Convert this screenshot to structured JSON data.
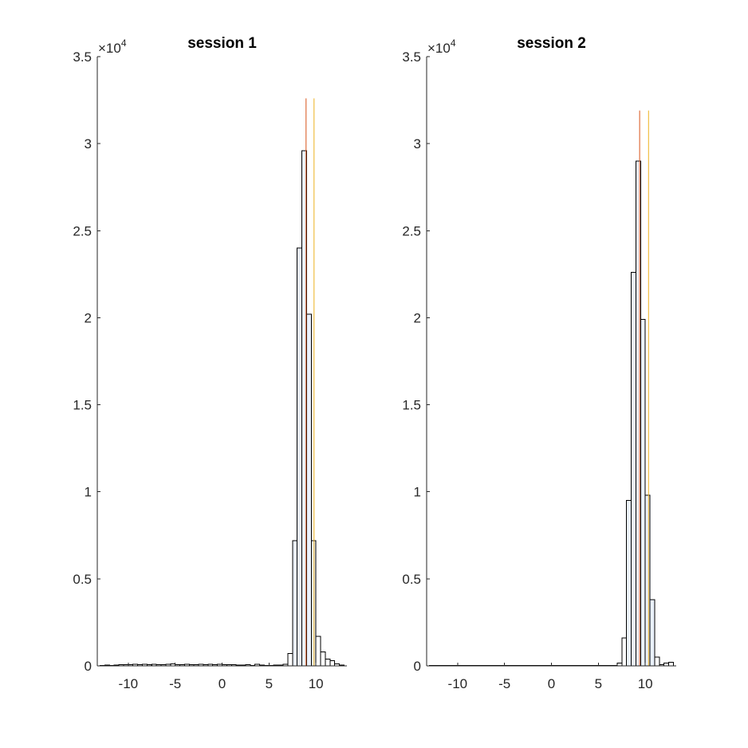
{
  "chart_data": [
    {
      "type": "bar",
      "title": "session 1",
      "xlim": [
        -13.3,
        13.3
      ],
      "ylim": [
        0,
        35000
      ],
      "xticks": [
        -10,
        -5,
        0,
        5,
        10
      ],
      "yticks": [
        0,
        5000,
        10000,
        15000,
        20000,
        25000,
        30000,
        35000
      ],
      "ytick_labels": [
        "0",
        "0.5",
        "1",
        "1.5",
        "2",
        "2.5",
        "3",
        "3.5"
      ],
      "y_exponent_base": "×10",
      "y_exponent_power": "4",
      "bin_width": 0.5,
      "bars": [
        {
          "x": -12.75,
          "y": 30
        },
        {
          "x": -12.25,
          "y": 40
        },
        {
          "x": -11.75,
          "y": 30
        },
        {
          "x": -11.25,
          "y": 40
        },
        {
          "x": -10.75,
          "y": 60
        },
        {
          "x": -10.25,
          "y": 80
        },
        {
          "x": -9.75,
          "y": 80
        },
        {
          "x": -9.25,
          "y": 90
        },
        {
          "x": -8.75,
          "y": 70
        },
        {
          "x": -8.25,
          "y": 90
        },
        {
          "x": -7.75,
          "y": 70
        },
        {
          "x": -7.25,
          "y": 90
        },
        {
          "x": -6.75,
          "y": 70
        },
        {
          "x": -6.25,
          "y": 80
        },
        {
          "x": -5.75,
          "y": 100
        },
        {
          "x": -5.25,
          "y": 110
        },
        {
          "x": -4.75,
          "y": 60
        },
        {
          "x": -4.25,
          "y": 70
        },
        {
          "x": -3.75,
          "y": 90
        },
        {
          "x": -3.25,
          "y": 70
        },
        {
          "x": -2.75,
          "y": 60
        },
        {
          "x": -2.25,
          "y": 100
        },
        {
          "x": -1.75,
          "y": 80
        },
        {
          "x": -1.25,
          "y": 100
        },
        {
          "x": -0.75,
          "y": 80
        },
        {
          "x": -0.25,
          "y": 90
        },
        {
          "x": 0.25,
          "y": 80
        },
        {
          "x": 0.75,
          "y": 60
        },
        {
          "x": 1.25,
          "y": 70
        },
        {
          "x": 1.75,
          "y": 40
        },
        {
          "x": 2.25,
          "y": 40
        },
        {
          "x": 2.75,
          "y": 60
        },
        {
          "x": 3.25,
          "y": 30
        },
        {
          "x": 3.75,
          "y": 90
        },
        {
          "x": 4.25,
          "y": 40
        },
        {
          "x": 4.75,
          "y": 30
        },
        {
          "x": 5.25,
          "y": 30
        },
        {
          "x": 5.75,
          "y": 40
        },
        {
          "x": 6.25,
          "y": 50
        },
        {
          "x": 6.75,
          "y": 90
        },
        {
          "x": 7.25,
          "y": 700
        },
        {
          "x": 7.75,
          "y": 7200
        },
        {
          "x": 8.25,
          "y": 24000
        },
        {
          "x": 8.75,
          "y": 29600
        },
        {
          "x": 9.25,
          "y": 20200
        },
        {
          "x": 9.75,
          "y": 7200
        },
        {
          "x": 10.25,
          "y": 1700
        },
        {
          "x": 10.75,
          "y": 800
        },
        {
          "x": 11.25,
          "y": 400
        },
        {
          "x": 11.75,
          "y": 300
        },
        {
          "x": 12.25,
          "y": 120
        },
        {
          "x": 12.75,
          "y": 40
        }
      ],
      "vlines": [
        {
          "x": 8.95,
          "ymax": 32600,
          "color": "#D95319"
        },
        {
          "x": 9.8,
          "ymax": 32600,
          "color": "#EDB120"
        }
      ]
    },
    {
      "type": "bar",
      "title": "session 2",
      "xlim": [
        -13.3,
        13.3
      ],
      "ylim": [
        0,
        35000
      ],
      "xticks": [
        -10,
        -5,
        0,
        5,
        10
      ],
      "yticks": [
        0,
        5000,
        10000,
        15000,
        20000,
        25000,
        30000,
        35000
      ],
      "ytick_labels": [
        "0",
        "0.5",
        "1",
        "1.5",
        "2",
        "2.5",
        "3",
        "3.5"
      ],
      "y_exponent_base": "×10",
      "y_exponent_power": "4",
      "bin_width": 0.5,
      "bars": [
        {
          "x": -12.75,
          "y": 10
        },
        {
          "x": -12.25,
          "y": 10
        },
        {
          "x": -11.75,
          "y": 10
        },
        {
          "x": -11.25,
          "y": 10
        },
        {
          "x": -10.75,
          "y": 10
        },
        {
          "x": -10.25,
          "y": 10
        },
        {
          "x": -9.75,
          "y": 10
        },
        {
          "x": -9.25,
          "y": 10
        },
        {
          "x": -8.75,
          "y": 10
        },
        {
          "x": -8.25,
          "y": 10
        },
        {
          "x": -7.75,
          "y": 10
        },
        {
          "x": -7.25,
          "y": 10
        },
        {
          "x": -6.75,
          "y": 10
        },
        {
          "x": -6.25,
          "y": 10
        },
        {
          "x": -5.75,
          "y": 10
        },
        {
          "x": -5.25,
          "y": 10
        },
        {
          "x": -4.75,
          "y": 10
        },
        {
          "x": -4.25,
          "y": 10
        },
        {
          "x": -3.75,
          "y": 10
        },
        {
          "x": -3.25,
          "y": 10
        },
        {
          "x": -2.75,
          "y": 10
        },
        {
          "x": -2.25,
          "y": 10
        },
        {
          "x": -1.75,
          "y": 10
        },
        {
          "x": -1.25,
          "y": 10
        },
        {
          "x": -0.75,
          "y": 10
        },
        {
          "x": -0.25,
          "y": 10
        },
        {
          "x": 0.25,
          "y": 10
        },
        {
          "x": 0.75,
          "y": 10
        },
        {
          "x": 1.25,
          "y": 10
        },
        {
          "x": 1.75,
          "y": 10
        },
        {
          "x": 2.25,
          "y": 10
        },
        {
          "x": 2.75,
          "y": 10
        },
        {
          "x": 3.25,
          "y": 10
        },
        {
          "x": 3.75,
          "y": 10
        },
        {
          "x": 4.25,
          "y": 10
        },
        {
          "x": 4.75,
          "y": 10
        },
        {
          "x": 5.25,
          "y": 10
        },
        {
          "x": 5.75,
          "y": 10
        },
        {
          "x": 6.25,
          "y": 20
        },
        {
          "x": 6.75,
          "y": 30
        },
        {
          "x": 7.25,
          "y": 150
        },
        {
          "x": 7.75,
          "y": 1600
        },
        {
          "x": 8.25,
          "y": 9500
        },
        {
          "x": 8.75,
          "y": 22600
        },
        {
          "x": 9.25,
          "y": 29000
        },
        {
          "x": 9.75,
          "y": 19900
        },
        {
          "x": 10.25,
          "y": 9800
        },
        {
          "x": 10.75,
          "y": 3800
        },
        {
          "x": 11.25,
          "y": 500
        },
        {
          "x": 11.75,
          "y": 80
        },
        {
          "x": 12.25,
          "y": 150
        },
        {
          "x": 12.75,
          "y": 200
        }
      ],
      "vlines": [
        {
          "x": 9.4,
          "ymax": 31900,
          "color": "#D95319"
        },
        {
          "x": 10.35,
          "ymax": 31900,
          "color": "#EDB120"
        }
      ]
    }
  ],
  "colors": {
    "bar_face": "#ffffff",
    "bar_face_peak": "#eaf1fb",
    "bar_edge": "#000000",
    "axis": "#262626"
  }
}
